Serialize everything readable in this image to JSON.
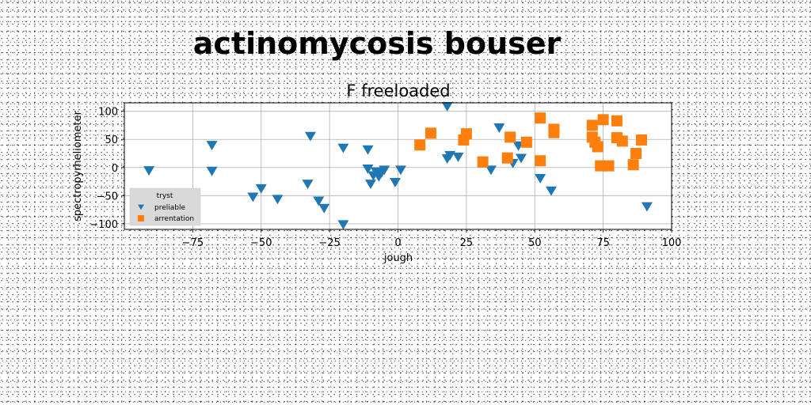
{
  "page": {
    "title": "actinomycosis bouser"
  },
  "chart_data": {
    "type": "scatter",
    "title": "F freeloaded",
    "xlabel": "jough",
    "ylabel": "spectropyrheliometer",
    "xlim": [
      -100,
      100
    ],
    "ylim": [
      -110,
      115
    ],
    "x_ticks": [
      -75,
      -50,
      -25,
      0,
      25,
      50,
      75,
      100
    ],
    "y_ticks": [
      -100,
      -50,
      0,
      50,
      100
    ],
    "grid": true,
    "legend": {
      "title": "tryst",
      "placement": "lower-left"
    },
    "series": [
      {
        "name": "preliable",
        "marker": "triangle-down",
        "color": "#1f77b4",
        "points": [
          {
            "x": -91,
            "y": -6
          },
          {
            "x": -68,
            "y": 39
          },
          {
            "x": -68,
            "y": -7
          },
          {
            "x": -53,
            "y": -53
          },
          {
            "x": -50,
            "y": -38
          },
          {
            "x": -44,
            "y": -57
          },
          {
            "x": -32,
            "y": 55
          },
          {
            "x": -33,
            "y": -30
          },
          {
            "x": -29,
            "y": -60
          },
          {
            "x": -27,
            "y": -73
          },
          {
            "x": -20,
            "y": 34
          },
          {
            "x": -20,
            "y": -102
          },
          {
            "x": -11,
            "y": 31
          },
          {
            "x": -11,
            "y": -3
          },
          {
            "x": -10,
            "y": -30
          },
          {
            "x": -9,
            "y": -15
          },
          {
            "x": -8,
            "y": -8
          },
          {
            "x": -7,
            "y": -17
          },
          {
            "x": -6,
            "y": -10
          },
          {
            "x": -5,
            "y": -5
          },
          {
            "x": -1,
            "y": -27
          },
          {
            "x": 1,
            "y": -5
          },
          {
            "x": 18,
            "y": 108
          },
          {
            "x": 18,
            "y": 15
          },
          {
            "x": 19,
            "y": 21
          },
          {
            "x": 22,
            "y": 18
          },
          {
            "x": 34,
            "y": -5
          },
          {
            "x": 37,
            "y": 70
          },
          {
            "x": 42,
            "y": 7
          },
          {
            "x": 44,
            "y": 38
          },
          {
            "x": 45,
            "y": 16
          },
          {
            "x": 52,
            "y": -20
          },
          {
            "x": 56,
            "y": -42
          },
          {
            "x": 91,
            "y": -70
          }
        ]
      },
      {
        "name": "arrentation",
        "marker": "square",
        "color": "#ff7f0e",
        "points": [
          {
            "x": 8,
            "y": 40
          },
          {
            "x": 12,
            "y": 61
          },
          {
            "x": 24,
            "y": 49
          },
          {
            "x": 25,
            "y": 60
          },
          {
            "x": 31,
            "y": 10
          },
          {
            "x": 40,
            "y": 17
          },
          {
            "x": 41,
            "y": 54
          },
          {
            "x": 47,
            "y": 45
          },
          {
            "x": 52,
            "y": 12
          },
          {
            "x": 52,
            "y": 88
          },
          {
            "x": 57,
            "y": 62
          },
          {
            "x": 57,
            "y": 68
          },
          {
            "x": 71,
            "y": 75
          },
          {
            "x": 71,
            "y": 54
          },
          {
            "x": 72,
            "y": 45
          },
          {
            "x": 73,
            "y": 37
          },
          {
            "x": 74,
            "y": 3
          },
          {
            "x": 75,
            "y": 85
          },
          {
            "x": 77,
            "y": 3
          },
          {
            "x": 80,
            "y": 83
          },
          {
            "x": 80,
            "y": 53
          },
          {
            "x": 82,
            "y": 47
          },
          {
            "x": 86,
            "y": 5
          },
          {
            "x": 87,
            "y": 25
          },
          {
            "x": 89,
            "y": 49
          }
        ]
      }
    ]
  }
}
